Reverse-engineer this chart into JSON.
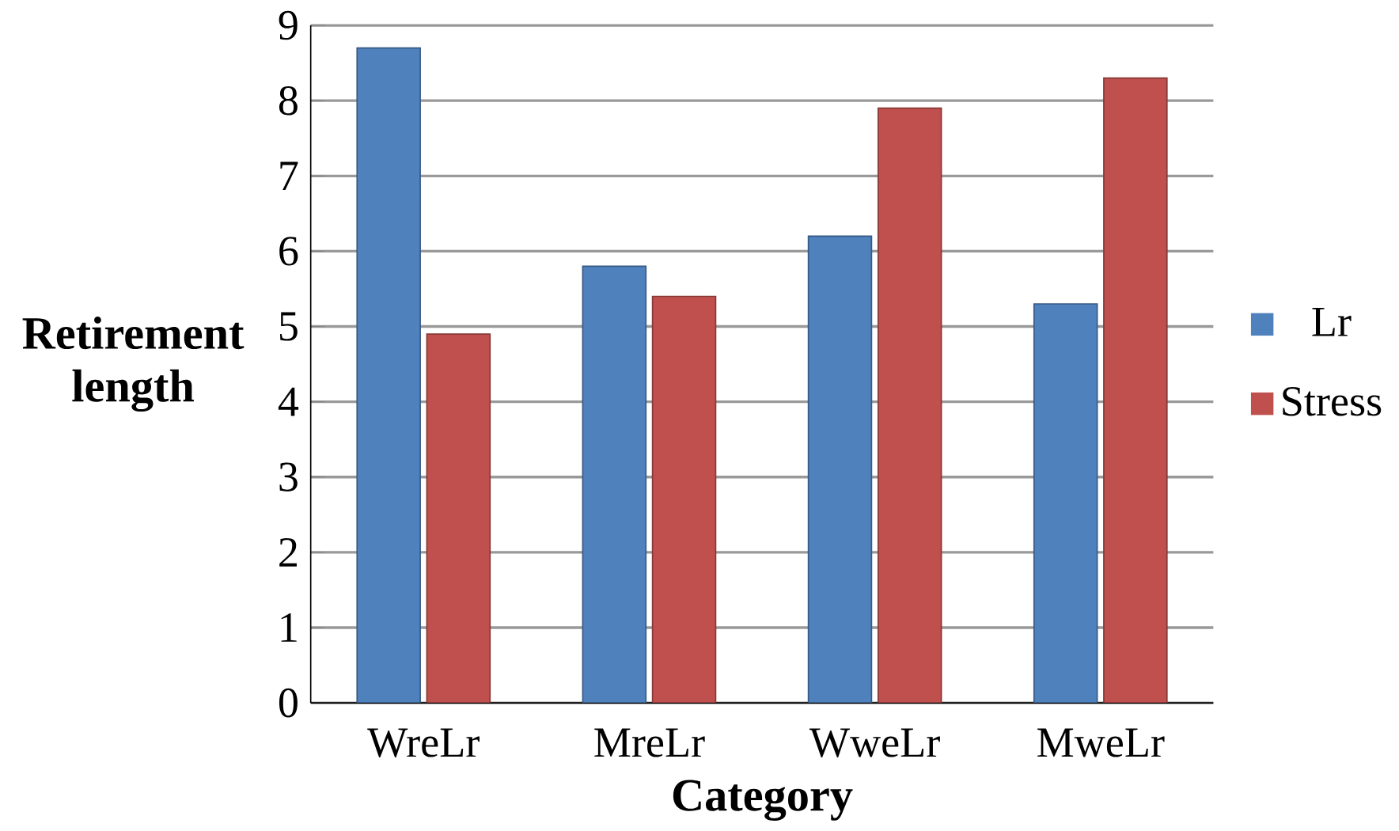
{
  "chart_data": {
    "type": "bar",
    "xlabel": "Category",
    "ylabel": "Retirement length",
    "categories": [
      "WreLr",
      "MreLr",
      "WweLr",
      "MweLr"
    ],
    "series": [
      {
        "name": "Lr",
        "color": "#4f81bd",
        "values": [
          8.7,
          5.8,
          6.2,
          5.3
        ]
      },
      {
        "name": "Stress",
        "color": "#c0504d",
        "values": [
          4.9,
          5.4,
          7.9,
          8.3
        ]
      }
    ],
    "ylim": [
      0,
      9
    ],
    "yticks": [
      0,
      1,
      2,
      3,
      4,
      5,
      6,
      7,
      8,
      9
    ],
    "grid": "y",
    "legend": "right"
  }
}
